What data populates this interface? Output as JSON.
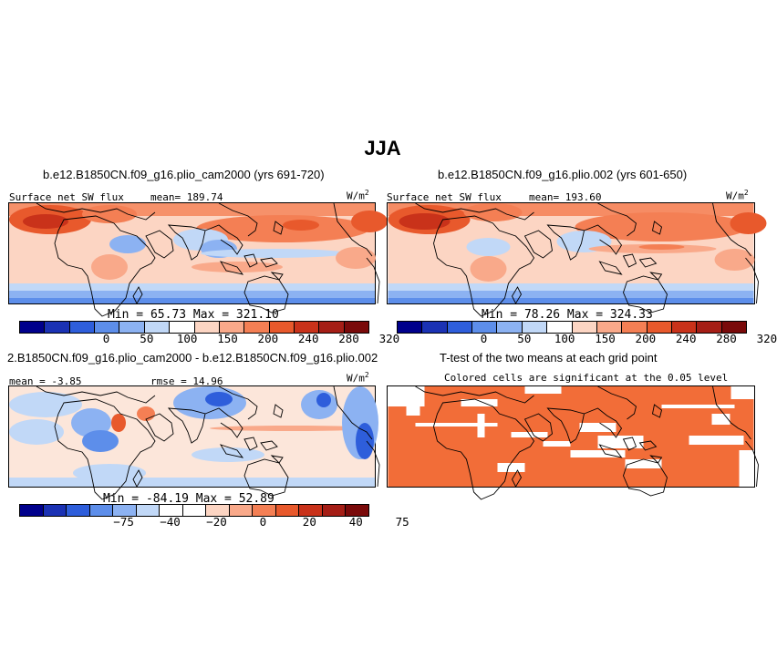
{
  "title": "JJA",
  "colors": {
    "pos_scale": [
      "#00008C",
      "#1B32B4",
      "#2E5EDB",
      "#5D8EEA",
      "#8CB2F2",
      "#C1D8F7",
      "#FFFFFF",
      "#FCD5C3",
      "#F9A98A",
      "#F47F54",
      "#E8592C",
      "#C9321A",
      "#A51E16",
      "#7A0A0A"
    ],
    "diff_scale": [
      "#00008C",
      "#1B32B4",
      "#2E5EDB",
      "#5D8EEA",
      "#8CB2F2",
      "#C1D8F7",
      "#FFFFFF",
      "#FFFFFF",
      "#FCD5C3",
      "#F9A98A",
      "#F47F54",
      "#E8592C",
      "#C9321A",
      "#A51E16",
      "#7A0A0A"
    ],
    "sig": "#F26D38"
  },
  "panels": {
    "p1": {
      "title": "b.e12.B1850CN.f09_g16.plio_cam2000 (yrs 691-720)",
      "var": "Surface net SW flux",
      "mean_label": "mean=",
      "mean": "189.74",
      "units": "W/m",
      "units_exp": "2",
      "minmax": "Min =  65.73 Max = 321.10",
      "ticks": [
        "0",
        "50",
        "100",
        "150",
        "200",
        "240",
        "280",
        "320"
      ]
    },
    "p2": {
      "title": "b.e12.B1850CN.f09_g16.plio.002 (yrs 601-650)",
      "var": "Surface net SW flux",
      "mean_label": "mean=",
      "mean": "193.60",
      "units": "W/m",
      "units_exp": "2",
      "minmax": "Min =  78.26 Max = 324.33",
      "ticks": [
        "0",
        "50",
        "100",
        "150",
        "200",
        "240",
        "280",
        "320"
      ]
    },
    "p3": {
      "title": "2.B1850CN.f09_g16.plio_cam2000 - b.e12.B1850CN.f09_g16.plio.002",
      "mean_text": "mean = -3.85",
      "rmse_text": "rmse =  14.96",
      "units": "W/m",
      "units_exp": "2",
      "minmax": "Min = -84.19 Max =  52.89",
      "ticks": [
        "−75",
        "−40",
        "−20",
        "0",
        "20",
        "40",
        "75"
      ]
    },
    "p4": {
      "title": "T-test of the two means at each grid point",
      "subtitle": "Colored cells are significant at the 0.05 level"
    }
  }
}
